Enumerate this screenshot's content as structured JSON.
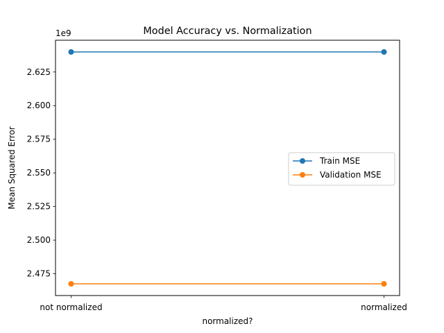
{
  "chart_data": {
    "type": "line",
    "title": "Model Accuracy vs. Normalization",
    "xlabel": "normalized?",
    "ylabel": "Mean Squared Error",
    "offset_text": "1e9",
    "categories": [
      "not normalized",
      "normalized"
    ],
    "series": [
      {
        "name": "Train MSE",
        "values": [
          2639900000,
          2639900000
        ],
        "color": "#1f77b4"
      },
      {
        "name": "Validation MSE",
        "values": [
          2467500000,
          2467500000
        ],
        "color": "#ff7f0e"
      }
    ],
    "ylim": [
      2458800000,
      2648600000
    ],
    "yticks": [
      2475000000,
      2500000000,
      2525000000,
      2550000000,
      2575000000,
      2600000000,
      2625000000
    ],
    "ytick_labels": [
      "2.475",
      "2.500",
      "2.525",
      "2.550",
      "2.575",
      "2.600",
      "2.625"
    ],
    "grid": false,
    "legend_position": "center-right",
    "marker": "circle"
  }
}
